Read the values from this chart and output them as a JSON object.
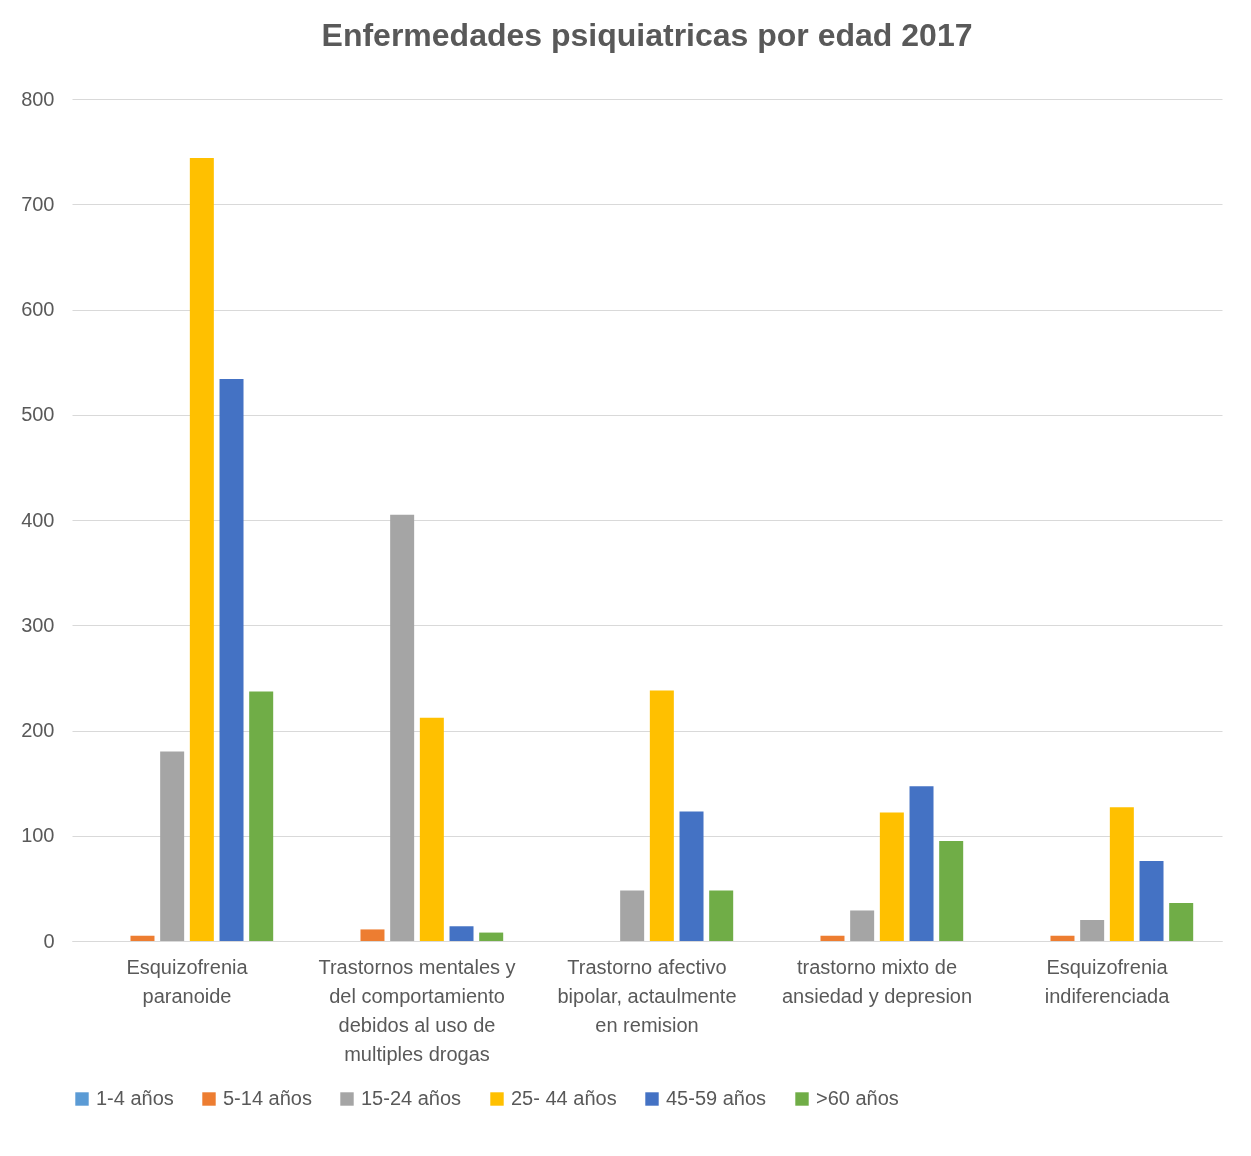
{
  "chart_data": {
    "type": "bar",
    "title": "Enfermedades psiquiatricas por edad 2017",
    "categories": [
      "Esquizofrenia paranoide",
      "Trastornos mentales y del comportamiento debidos al uso de multiples drogas",
      "Trastorno afectivo bipolar, actaulmente en remision",
      "trastorno mixto de ansiedad y depresion",
      "Esquizofrenia indiferenciada"
    ],
    "series": [
      {
        "name": "1-4 años",
        "color": "#5b9bd5",
        "values": [
          0,
          0,
          0,
          0,
          0
        ]
      },
      {
        "name": "5-14 años",
        "color": "#ed7d31",
        "values": [
          5,
          11,
          0,
          5,
          5
        ]
      },
      {
        "name": "15-24 años",
        "color": "#a5a5a5",
        "values": [
          180,
          405,
          48,
          29,
          20
        ]
      },
      {
        "name": "25- 44 años",
        "color": "#ffc000",
        "values": [
          744,
          212,
          238,
          122,
          127
        ]
      },
      {
        "name": "45-59 años",
        "color": "#4472c4",
        "values": [
          534,
          14,
          123,
          147,
          76
        ]
      },
      {
        "name": ">60 años",
        "color": "#70ad47",
        "values": [
          237,
          8,
          48,
          95,
          36
        ]
      }
    ],
    "ylim": [
      0,
      800
    ],
    "yticks": [
      0,
      100,
      200,
      300,
      400,
      500,
      600,
      700,
      800
    ],
    "grid": "y",
    "legend": "bottom"
  }
}
